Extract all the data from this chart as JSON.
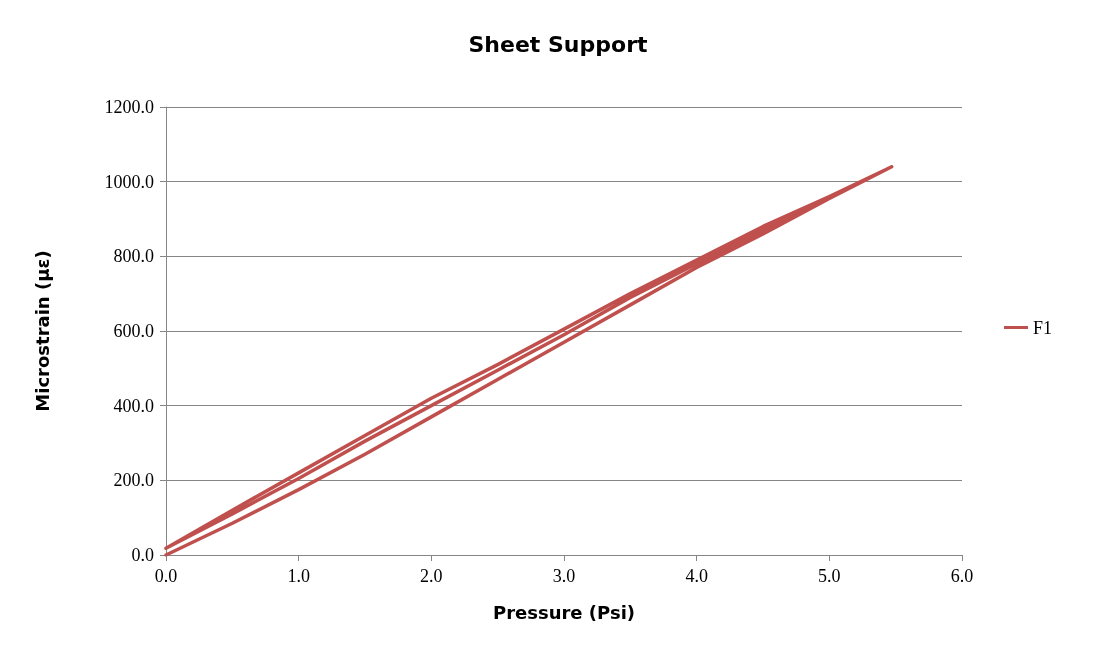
{
  "chart_data": {
    "type": "line",
    "title": "Sheet Support",
    "xlabel": "Pressure (Psi)",
    "ylabel": "Microstrain (με)",
    "xlim": [
      0,
      6
    ],
    "xticks": [
      {
        "value": 0,
        "label": "0.0"
      },
      {
        "value": 1,
        "label": "1.0"
      },
      {
        "value": 2,
        "label": "2.0"
      },
      {
        "value": 3,
        "label": "3.0"
      },
      {
        "value": 4,
        "label": "4.0"
      },
      {
        "value": 5,
        "label": "5.0"
      },
      {
        "value": 6,
        "label": "6.0"
      }
    ],
    "ylim": [
      0,
      1200
    ],
    "yticks": [
      {
        "value": 0,
        "label": "0.0"
      },
      {
        "value": 200,
        "label": "200.0"
      },
      {
        "value": 400,
        "label": "400.0"
      },
      {
        "value": 600,
        "label": "600.0"
      },
      {
        "value": 800,
        "label": "800.0"
      },
      {
        "value": 1000,
        "label": "1000.0"
      },
      {
        "value": 1200,
        "label": "1200.0"
      }
    ],
    "grid": "y",
    "legend": "right",
    "marker": "none",
    "line_style": "solid",
    "series": [
      {
        "name": "F1",
        "color": "#c0504d",
        "x": [
          0,
          0.5,
          1,
          1.5,
          2,
          2.5,
          3,
          3.5,
          4,
          4.5,
          5,
          5.47,
          5,
          4.5,
          4,
          3.5,
          3,
          2.5,
          2,
          1.5,
          1,
          0.5,
          0,
          0.5,
          1,
          1.5,
          2,
          2.5,
          3,
          3.5,
          4,
          4.5,
          5,
          5.47
        ],
        "values": [
          0,
          85,
          175,
          270,
          370,
          470,
          570,
          670,
          770,
          860,
          955,
          1040,
          960,
          880,
          790,
          700,
          605,
          510,
          420,
          320,
          220,
          120,
          18,
          110,
          205,
          305,
          400,
          495,
          590,
          690,
          780,
          870,
          960,
          1040
        ]
      }
    ]
  }
}
